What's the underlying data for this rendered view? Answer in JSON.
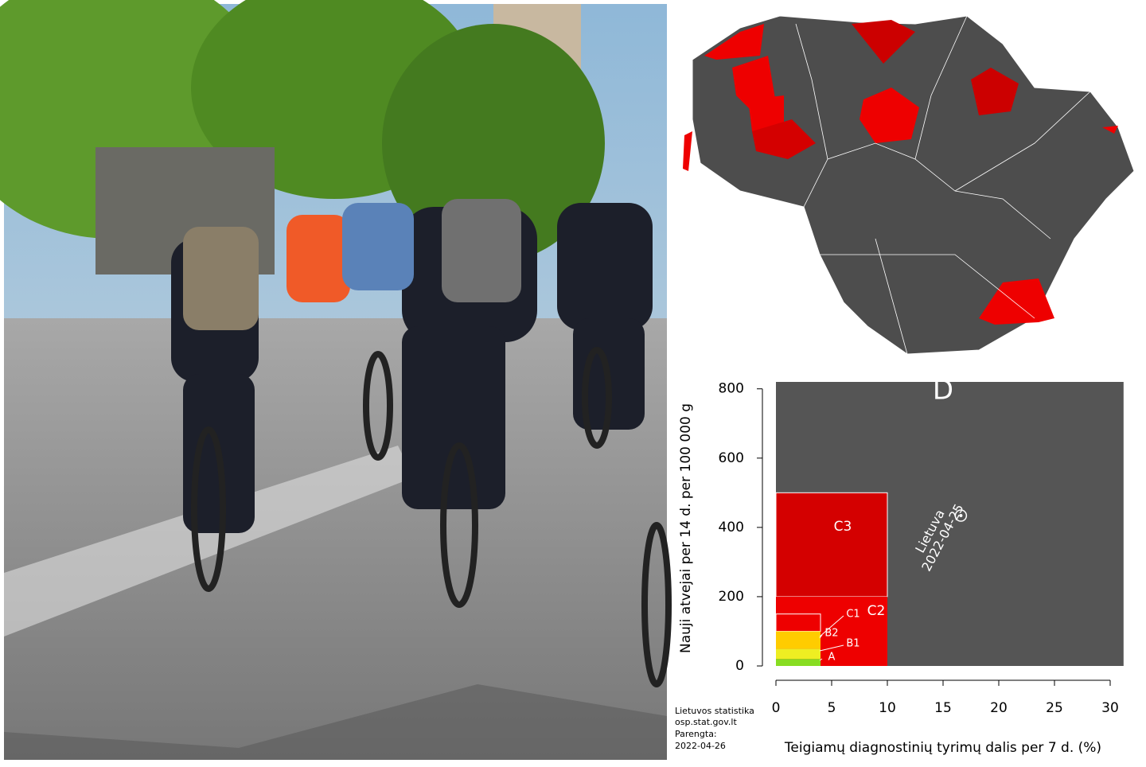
{
  "chart_data": {
    "type": "scatter",
    "ylabel": "Nauji atvejai per 14 d. per 100 000 g",
    "xlabel": "Teigiamų diagnostinių tyrimų dalis per 7 d. (%)",
    "xlim": [
      0,
      31.2
    ],
    "xticks": [
      0,
      5,
      10,
      15,
      20,
      25,
      30
    ],
    "ylim": [
      0,
      820
    ],
    "yticks": [
      0,
      200,
      400,
      600,
      800
    ],
    "background_zone": {
      "label": "D",
      "color": "#555555"
    },
    "zones": [
      {
        "label": "C3",
        "color": "#d40000",
        "x0": 0,
        "x1": 10,
        "y0": 200,
        "y1": 500
      },
      {
        "label": "C2",
        "color": "#ee0000",
        "x0": 0,
        "x1": 10,
        "y0": 0,
        "y1": 200
      },
      {
        "label": "C1",
        "color": "#ee0000",
        "x0": 0,
        "x1": 4,
        "y0": 100,
        "y1": 150
      },
      {
        "label": "B2",
        "color": "#ffcc00",
        "x0": 0,
        "x1": 4,
        "y0": 50,
        "y1": 100
      },
      {
        "label": "B1",
        "color": "#eeee22",
        "x0": 0,
        "x1": 4,
        "y0": 20,
        "y1": 50
      },
      {
        "label": "A",
        "color": "#88dd22",
        "x0": 0,
        "x1": 4,
        "y0": 0,
        "y1": 20
      }
    ],
    "x": [
      16.6
    ],
    "values": [
      434
    ],
    "point_label": {
      "name": "Lietuva",
      "date": "2022-04-25"
    },
    "source": [
      "Lietuvos statistika",
      "osp.stat.gov.lt",
      "Parengta:",
      "2022-04-26"
    ]
  }
}
